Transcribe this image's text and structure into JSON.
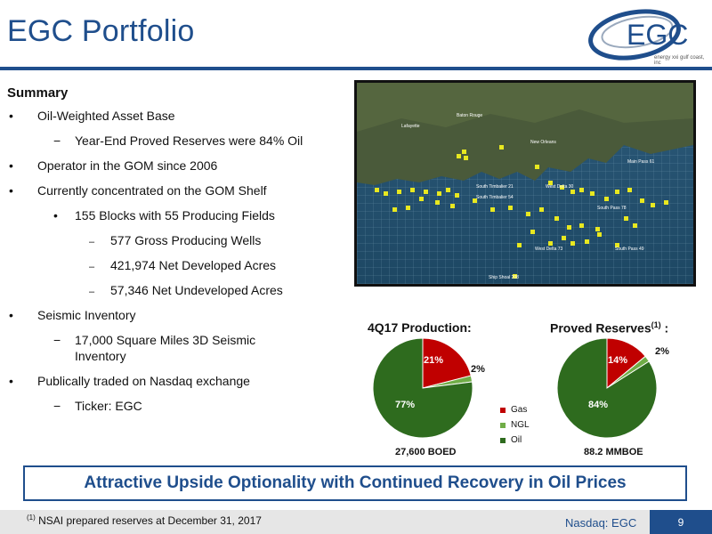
{
  "header": {
    "title": "EGC Portfolio",
    "logo_text": "EGC",
    "logo_subtext": "energy xxi gulf coast, inc"
  },
  "summary": {
    "heading": "Summary",
    "bullets": [
      "Oil-Weighted Asset Base",
      "Year-End Proved Reserves were 84% Oil",
      "Operator in the GOM since 2006",
      "Currently concentrated on the GOM Shelf",
      "155 Blocks with 55 Producing Fields",
      "577 Gross Producing Wells",
      "421,974 Net Developed Acres",
      "57,346 Net Undeveloped Acres",
      "Seismic Inventory",
      "17,000 Square Miles 3D Seismic Inventory",
      "Publically traded on Nasdaq exchange",
      "Ticker: EGC"
    ]
  },
  "map": {
    "labels": [
      "Baton Rouge",
      "Lafayette",
      "New Orleans",
      "Main Pass 61",
      "South Timbalier 21",
      "West Delta 30",
      "South Timbalier 54",
      "South Pass 78",
      "West Delta 73",
      "South Pass 49",
      "Ship Shoal 208"
    ]
  },
  "chart_data": [
    {
      "type": "pie",
      "title": "4Q17 Production:",
      "categories": [
        "Gas",
        "NGL",
        "Oil"
      ],
      "values": [
        21,
        2,
        77
      ],
      "labels": [
        "21%",
        "2%",
        "77%"
      ],
      "footer": "27,600 BOED",
      "legend": "right"
    },
    {
      "type": "pie",
      "title": "Proved Reserves",
      "title_sup": "(1)",
      "title_suffix": " :",
      "categories": [
        "Gas",
        "NGL",
        "Oil"
      ],
      "values": [
        14,
        2,
        84
      ],
      "labels": [
        "14%",
        "2%",
        "84%"
      ],
      "footer": "88.2 MMBOE"
    }
  ],
  "legend": {
    "gas": "Gas",
    "ngl": "NGL",
    "oil": "Oil"
  },
  "colors": {
    "gas": "#c00000",
    "ngl": "#70ad47",
    "oil": "#2e6b1e",
    "brand": "#1f4e8c"
  },
  "banner": "Attractive Upside Optionality with Continued Recovery in Oil Prices",
  "footer": {
    "footnote_marker": "(1)",
    "footnote": "NSAI prepared reserves at December 31, 2017",
    "exchange": "Nasdaq: EGC",
    "page": "9"
  }
}
